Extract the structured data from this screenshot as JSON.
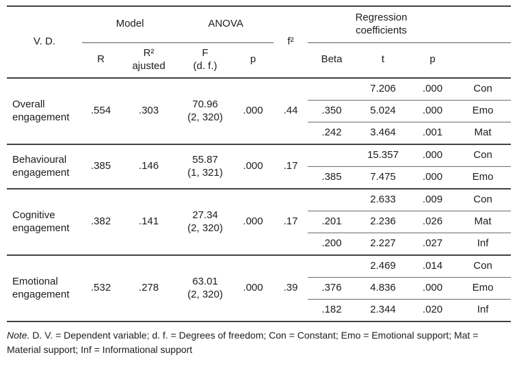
{
  "table": {
    "header": {
      "vd": "V. D.",
      "model": "Model",
      "anova": "ANOVA",
      "f2": "f²",
      "regression": "Regression\ncoefficients",
      "sub": {
        "r": "R",
        "r2": "R²\najusted",
        "f": "F\n(d. f.)",
        "p": "p",
        "beta": "Beta",
        "t": "t",
        "p2": "p"
      }
    },
    "blocks": [
      {
        "vd": "Overall\nengagement",
        "r": ".554",
        "r2": ".303",
        "f": "70.96\n(2, 320)",
        "p": ".000",
        "f2": ".44",
        "rows": [
          {
            "beta": "",
            "t": "7.206",
            "p": ".000",
            "label": "Con"
          },
          {
            "beta": ".350",
            "t": "5.024",
            "p": ".000",
            "label": "Emo"
          },
          {
            "beta": ".242",
            "t": "3.464",
            "p": ".001",
            "label": "Mat"
          }
        ]
      },
      {
        "vd": "Behavioural\nengagement",
        "r": ".385",
        "r2": ".146",
        "f": "55.87\n(1, 321)",
        "p": ".000",
        "f2": ".17",
        "rows": [
          {
            "beta": "",
            "t": "15.357",
            "p": ".000",
            "label": "Con"
          },
          {
            "beta": ".385",
            "t": "7.475",
            "p": ".000",
            "label": "Emo"
          }
        ]
      },
      {
        "vd": "Cognitive\nengagement",
        "r": ".382",
        "r2": ".141",
        "f": "27.34\n(2, 320)",
        "p": ".000",
        "f2": ".17",
        "rows": [
          {
            "beta": "",
            "t": "2.633",
            "p": ".009",
            "label": "Con"
          },
          {
            "beta": ".201",
            "t": "2.236",
            "p": ".026",
            "label": "Mat"
          },
          {
            "beta": ".200",
            "t": "2.227",
            "p": ".027",
            "label": "Inf"
          }
        ]
      },
      {
        "vd": "Emotional\nengagement",
        "r": ".532",
        "r2": ".278",
        "f": "63.01\n(2, 320)",
        "p": ".000",
        "f2": ".39",
        "rows": [
          {
            "beta": "",
            "t": "2.469",
            "p": ".014",
            "label": "Con"
          },
          {
            "beta": ".376",
            "t": "4.836",
            "p": ".000",
            "label": "Emo"
          },
          {
            "beta": ".182",
            "t": "2.344",
            "p": ".020",
            "label": "Inf"
          }
        ]
      }
    ]
  },
  "note": {
    "label": "Note.",
    "text": "D. V. = Dependent variable; d. f. = Degrees of freedom; Con = Constant; Emo = Emotional support; Mat = Material support; Inf = Informational support"
  }
}
